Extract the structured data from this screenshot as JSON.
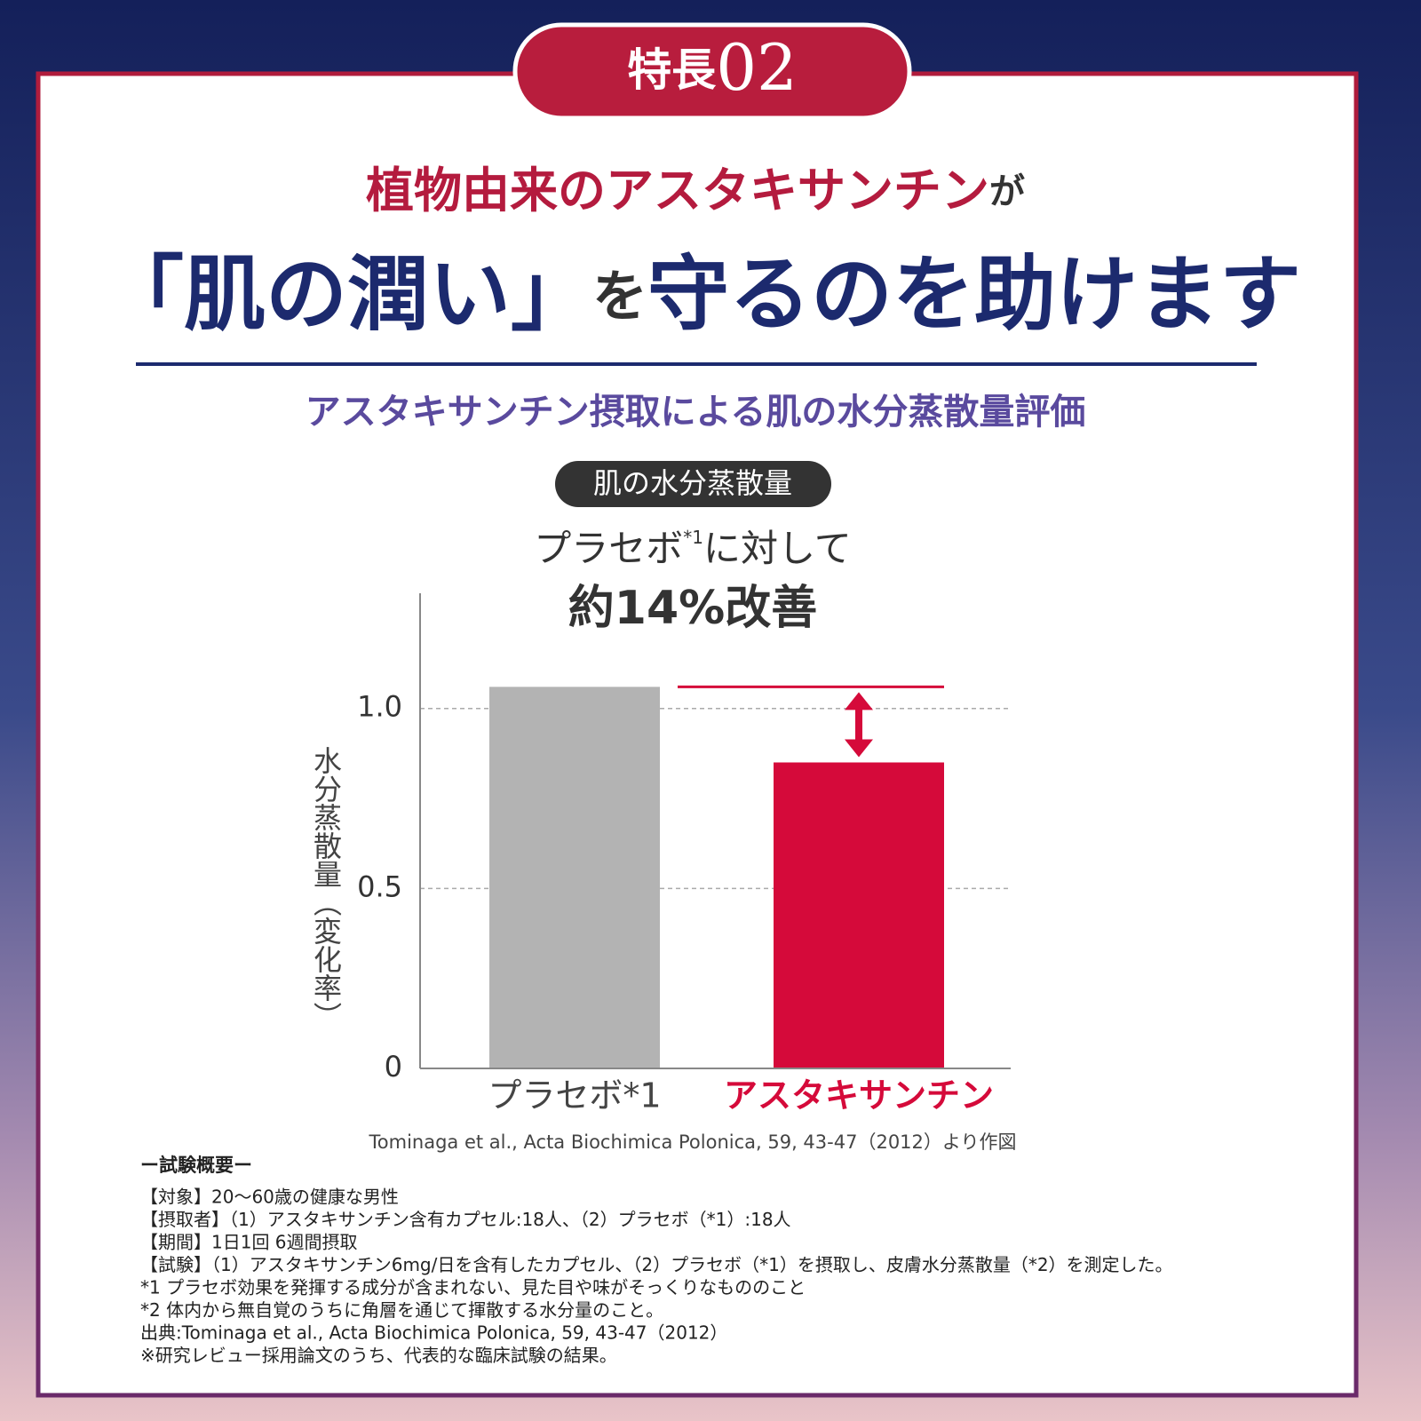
{
  "badge": {
    "label": "特長",
    "number": "02"
  },
  "headline": {
    "line1_main": "植物由来のアスタキサンチン",
    "line1_particle": "が",
    "line2_a": "「肌の潤い」",
    "line2_particle": "を",
    "line2_b": "守るのを助けます"
  },
  "subtitle": "アスタキサンチン摂取による肌の水分蒸散量評価",
  "chart_data": {
    "type": "bar",
    "title": "肌の水分蒸散量",
    "annotation": {
      "prefix": "プラセボ",
      "note": "*1",
      "suffix": "に対して",
      "result": "約14%改善"
    },
    "y_label": "水分蒸散量（変化率）",
    "categories": [
      "プラセボ*1",
      "アスタキサンチン"
    ],
    "values": [
      1.06,
      0.85
    ],
    "colors": [
      "#b3b3b3",
      "#d50a3a"
    ],
    "ylim": [
      0,
      1.32
    ],
    "yticks": [
      0,
      0.5,
      {
        "value": 1,
        "label": "1.0"
      }
    ],
    "grid": true,
    "source": "Tominaga et al., Acta Biochimica Polonica,  59, 43-47（2012）より作図"
  },
  "trial_summary": {
    "heading": "ー試験概要ー",
    "lines": [
      "【対象】20〜60歳の健康な男性",
      "【摂取者】（1）アスタキサンチン含有カプセル:18人、（2）プラセボ（*1）:18人",
      "【期間】1日1回 6週間摂取",
      "【試験】（1）アスタキサンチン6mg/日を含有したカプセル、（2）プラセボ（*1）を摂取し、皮膚水分蒸散量（*2）を測定した。",
      "*1 プラセボ効果を発揮する成分が含まれない、見た目や味がそっくりなもののこと",
      "*2 体内から無自覚のうちに角層を通じて揮散する水分量のこと。",
      "出典:Tominaga et al., Acta Biochimica Polonica, 59, 43-47（2012）",
      "※研究レビュー採用論文のうち、代表的な臨床試験の結果。"
    ]
  }
}
